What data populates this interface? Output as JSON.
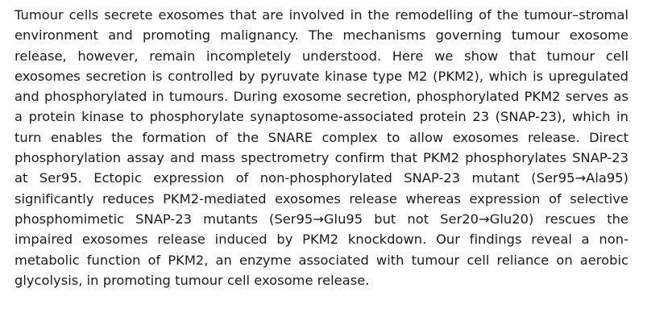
{
  "abstract": {
    "text": "Tumour cells secrete exosomes that are involved in the remodelling of the tumour–stromal environment and promoting malignancy. The mechanisms governing tumour exosome release, however, remain incompletely understood. Here we show that tumour cell exosomes secretion is controlled by pyruvate kinase type M2 (PKM2), which is upregulated and phosphorylated in tumours. During exosome secretion, phosphorylated PKM2 serves as a protein kinase to phosphorylate synaptosome-associated protein 23 (SNAP-23), which in turn enables the formation of the SNARE complex to allow exosomes release. Direct phosphorylation assay and mass spectrometry confirm that PKM2 phosphorylates SNAP-23 at Ser95. Ectopic expression of non-phosphorylated SNAP-23 mutant (Ser95→Ala95) significantly reduces PKM2-mediated exosomes release whereas expression of selective phosphomimetic SNAP-23 mutants (Ser95→Glu95 but not Ser20→Glu20) rescues the impaired exosomes release induced by PKM2 knockdown. Our findings reveal a non-metabolic function of PKM2, an enzyme associated with tumour cell reliance on aerobic glycolysis, in promoting tumour cell exosome release."
  }
}
